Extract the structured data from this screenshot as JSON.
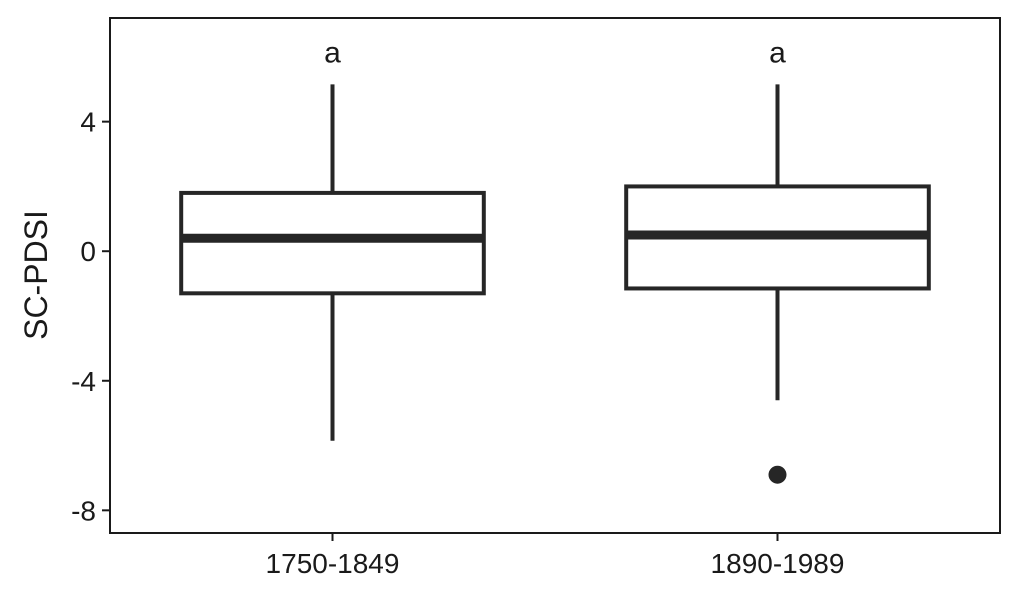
{
  "chart_data": {
    "type": "boxplot",
    "ylabel": "SC-PDSI",
    "xlabel": "",
    "ylim": [
      -8.7,
      7.2
    ],
    "yticks": [
      {
        "value": 4,
        "label": "4"
      },
      {
        "value": 0,
        "label": "0"
      },
      {
        "value": -4,
        "label": "-4"
      },
      {
        "value": -8,
        "label": "-8"
      }
    ],
    "categories": [
      "1750-1849",
      "1890-1989"
    ],
    "boxes": [
      {
        "category": "1750-1849",
        "whisker_low": -5.85,
        "q1": -1.3,
        "median": 0.4,
        "q3": 1.8,
        "whisker_high": 5.15,
        "outliers": [],
        "group_letter": "a"
      },
      {
        "category": "1890-1989",
        "whisker_low": -4.6,
        "q1": -1.15,
        "median": 0.5,
        "q3": 2.0,
        "whisker_high": 5.15,
        "outliers": [
          -6.9
        ],
        "group_letter": "a"
      }
    ],
    "grid": false,
    "colors": {
      "stroke": "#262626",
      "fill": "#ffffff"
    }
  }
}
